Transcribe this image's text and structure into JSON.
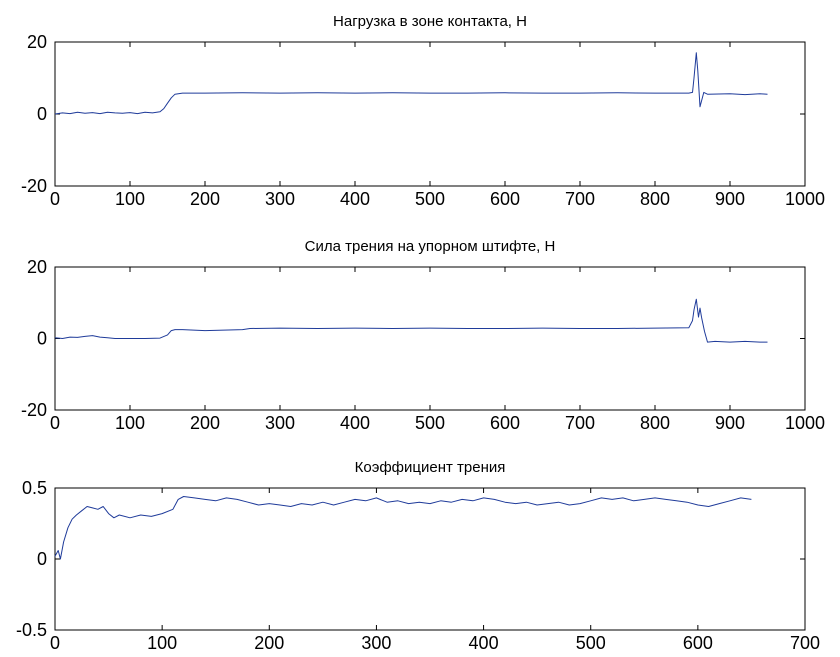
{
  "chart_data": [
    {
      "type": "line",
      "title": "Нагрузка в зоне контакта, Н",
      "xlabel": "",
      "ylabel": "",
      "xlim": [
        0,
        1000
      ],
      "ylim": [
        -20,
        20
      ],
      "xticks": [
        "0",
        "100",
        "200",
        "300",
        "400",
        "500",
        "600",
        "700",
        "800",
        "900",
        "1000"
      ],
      "yticks": [
        "-20",
        "0",
        "20"
      ],
      "grid": false,
      "line_color": "#1f3b9a",
      "series": [
        {
          "x": [
            0,
            10,
            20,
            30,
            40,
            50,
            60,
            70,
            80,
            90,
            100,
            110,
            120,
            130,
            140,
            145,
            150,
            155,
            160,
            170,
            200,
            250,
            300,
            350,
            400,
            450,
            500,
            550,
            600,
            650,
            700,
            750,
            800,
            845,
            850,
            852,
            855,
            857,
            860,
            865,
            870,
            900,
            920,
            940,
            950
          ],
          "y": [
            0,
            0.3,
            0.1,
            0.5,
            0.2,
            0.4,
            0.1,
            0.5,
            0.3,
            0.2,
            0.4,
            0.1,
            0.5,
            0.3,
            0.6,
            1.5,
            3.0,
            4.5,
            5.5,
            5.8,
            5.8,
            5.9,
            5.8,
            5.9,
            5.8,
            5.9,
            5.8,
            5.8,
            5.9,
            5.8,
            5.8,
            5.9,
            5.8,
            5.8,
            6.0,
            10.0,
            17.0,
            12.0,
            2.0,
            6.0,
            5.5,
            5.6,
            5.4,
            5.6,
            5.5
          ]
        }
      ]
    },
    {
      "type": "line",
      "title": "Сила трения на упорном штифте, Н",
      "xlabel": "",
      "ylabel": "",
      "xlim": [
        0,
        1000
      ],
      "ylim": [
        -20,
        20
      ],
      "xticks": [
        "0",
        "100",
        "200",
        "300",
        "400",
        "500",
        "600",
        "700",
        "800",
        "900",
        "1000"
      ],
      "yticks": [
        "-20",
        "0",
        "20"
      ],
      "grid": false,
      "line_color": "#1f3b9a",
      "series": [
        {
          "x": [
            0,
            10,
            20,
            30,
            40,
            50,
            60,
            70,
            80,
            100,
            120,
            140,
            150,
            155,
            160,
            170,
            200,
            250,
            260,
            300,
            350,
            400,
            450,
            500,
            550,
            600,
            650,
            700,
            750,
            800,
            845,
            850,
            852,
            855,
            858,
            860,
            862,
            866,
            870,
            880,
            900,
            920,
            940,
            950
          ],
          "y": [
            0.2,
            0.0,
            0.4,
            0.3,
            0.6,
            0.8,
            0.4,
            0.2,
            0.0,
            0.0,
            0.0,
            0.1,
            1.0,
            2.2,
            2.5,
            2.5,
            2.2,
            2.5,
            2.8,
            2.9,
            2.8,
            2.9,
            2.8,
            2.9,
            2.8,
            2.8,
            2.9,
            2.8,
            2.8,
            2.9,
            3.0,
            5.0,
            8.0,
            11.0,
            6.0,
            8.5,
            6.0,
            2.0,
            -1.0,
            -0.8,
            -1.0,
            -0.8,
            -1.0,
            -1.0
          ]
        }
      ]
    },
    {
      "type": "line",
      "title": "Коэффициент трения",
      "xlabel": "",
      "ylabel": "",
      "xlim": [
        0,
        700
      ],
      "ylim": [
        -0.5,
        0.5
      ],
      "xticks": [
        "0",
        "100",
        "200",
        "300",
        "400",
        "500",
        "600",
        "700"
      ],
      "yticks": [
        "-0.5",
        "0",
        "0.5"
      ],
      "grid": false,
      "line_color": "#1f3b9a",
      "series": [
        {
          "x": [
            0,
            3,
            5,
            8,
            12,
            16,
            20,
            25,
            30,
            35,
            40,
            45,
            50,
            55,
            60,
            70,
            80,
            90,
            100,
            110,
            115,
            120,
            130,
            140,
            150,
            160,
            170,
            180,
            190,
            200,
            210,
            220,
            230,
            240,
            250,
            260,
            270,
            280,
            290,
            300,
            310,
            320,
            330,
            340,
            350,
            360,
            370,
            380,
            390,
            400,
            410,
            420,
            430,
            440,
            450,
            460,
            470,
            480,
            490,
            500,
            510,
            520,
            530,
            540,
            550,
            560,
            570,
            580,
            590,
            600,
            610,
            620,
            630,
            640,
            650
          ],
          "y": [
            0.02,
            0.06,
            0.0,
            0.12,
            0.22,
            0.28,
            0.31,
            0.34,
            0.37,
            0.36,
            0.35,
            0.37,
            0.32,
            0.29,
            0.31,
            0.29,
            0.31,
            0.3,
            0.32,
            0.35,
            0.42,
            0.44,
            0.43,
            0.42,
            0.41,
            0.43,
            0.42,
            0.4,
            0.38,
            0.39,
            0.38,
            0.37,
            0.39,
            0.38,
            0.4,
            0.38,
            0.4,
            0.42,
            0.41,
            0.43,
            0.4,
            0.41,
            0.39,
            0.4,
            0.39,
            0.41,
            0.4,
            0.42,
            0.41,
            0.43,
            0.42,
            0.4,
            0.39,
            0.4,
            0.38,
            0.39,
            0.4,
            0.38,
            0.39,
            0.41,
            0.43,
            0.42,
            0.43,
            0.41,
            0.42,
            0.43,
            0.42,
            0.41,
            0.4,
            0.38,
            0.37,
            0.39,
            0.41,
            0.43,
            0.42
          ]
        }
      ]
    }
  ]
}
